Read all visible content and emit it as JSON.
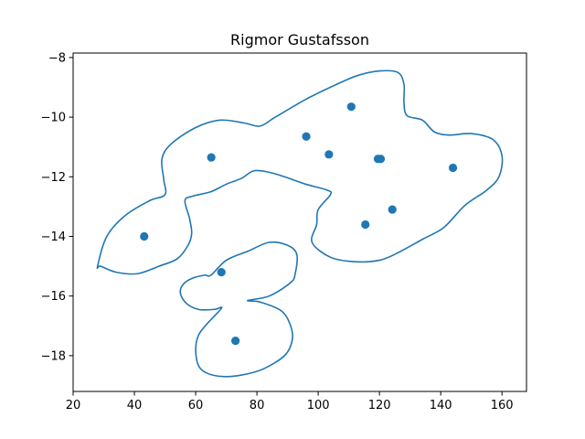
{
  "chart_data": {
    "type": "scatter",
    "title": "Rigmor Gustafsson",
    "xlabel": "",
    "ylabel": "",
    "xlim": [
      20,
      168
    ],
    "ylim": [
      -19.2,
      -7.85
    ],
    "xticks": [
      20,
      40,
      60,
      80,
      100,
      120,
      140,
      160
    ],
    "yticks": [
      -18,
      -16,
      -14,
      -12,
      -10,
      -8
    ],
    "xtick_labels": [
      "20",
      "40",
      "60",
      "80",
      "100",
      "120",
      "140",
      "160"
    ],
    "ytick_labels": [
      "−18",
      "−16",
      "−14",
      "−12",
      "−10",
      "−8"
    ],
    "grid": false,
    "legend": "none",
    "colors": {
      "series": "#1f77b4",
      "axis": "#000000",
      "background": "#ffffff"
    },
    "series": [
      {
        "points": [
          {
            "x": 43.2,
            "y": -14.0
          },
          {
            "x": 65.1,
            "y": -11.35
          },
          {
            "x": 68.4,
            "y": -15.2
          },
          {
            "x": 73.0,
            "y": -17.5
          },
          {
            "x": 96.1,
            "y": -10.65
          },
          {
            "x": 103.5,
            "y": -11.25
          },
          {
            "x": 110.8,
            "y": -9.65
          },
          {
            "x": 115.4,
            "y": -13.6
          },
          {
            "x": 119.5,
            "y": -11.4
          },
          {
            "x": 120.4,
            "y": -11.4
          },
          {
            "x": 124.2,
            "y": -13.1
          },
          {
            "x": 144.0,
            "y": -11.7
          }
        ]
      }
    ],
    "contours": [
      {
        "points": [
          [
            28,
            -15.0
          ],
          [
            31,
            -14.0
          ],
          [
            37,
            -13.3
          ],
          [
            45,
            -12.8
          ],
          [
            50,
            -12.6
          ],
          [
            49.6,
            -12.1
          ],
          [
            49,
            -11.4
          ],
          [
            52,
            -10.9
          ],
          [
            60,
            -10.35
          ],
          [
            68,
            -10.1
          ],
          [
            76,
            -10.2
          ],
          [
            81,
            -10.3
          ],
          [
            86,
            -10.0
          ],
          [
            96,
            -9.4
          ],
          [
            106,
            -8.9
          ],
          [
            113,
            -8.6
          ],
          [
            120,
            -8.45
          ],
          [
            126,
            -8.5
          ],
          [
            128,
            -8.9
          ],
          [
            128,
            -9.5
          ],
          [
            129,
            -9.95
          ],
          [
            134,
            -10.1
          ],
          [
            138,
            -10.5
          ],
          [
            143,
            -10.6
          ],
          [
            150,
            -10.55
          ],
          [
            157,
            -10.75
          ],
          [
            160,
            -11.3
          ],
          [
            159,
            -12.0
          ],
          [
            155,
            -12.45
          ],
          [
            148,
            -12.95
          ],
          [
            141,
            -13.7
          ],
          [
            134,
            -14.1
          ],
          [
            126,
            -14.55
          ],
          [
            120,
            -14.8
          ],
          [
            112,
            -14.85
          ],
          [
            104,
            -14.7
          ],
          [
            98,
            -14.2
          ],
          [
            99.5,
            -13.6
          ],
          [
            100,
            -13.1
          ],
          [
            104,
            -12.6
          ],
          [
            103,
            -12.45
          ],
          [
            96,
            -12.25
          ],
          [
            89,
            -12.0
          ],
          [
            84,
            -11.85
          ],
          [
            79,
            -11.8
          ],
          [
            75,
            -12.05
          ],
          [
            70,
            -12.25
          ],
          [
            65,
            -12.5
          ],
          [
            59,
            -12.65
          ],
          [
            56.5,
            -12.8
          ],
          [
            58,
            -13.4
          ],
          [
            58.7,
            -13.9
          ],
          [
            57.5,
            -14.3
          ],
          [
            54,
            -14.75
          ],
          [
            48,
            -15.0
          ],
          [
            41,
            -15.25
          ],
          [
            34,
            -15.2
          ],
          [
            29,
            -15.0
          ]
        ]
      },
      {
        "points": [
          [
            65,
            -15.3
          ],
          [
            70,
            -14.8
          ],
          [
            77,
            -14.5
          ],
          [
            84,
            -14.2
          ],
          [
            90,
            -14.3
          ],
          [
            93,
            -14.6
          ],
          [
            92.5,
            -15.25
          ],
          [
            91,
            -15.55
          ],
          [
            84,
            -16.0
          ],
          [
            77,
            -16.15
          ],
          [
            81,
            -16.2
          ],
          [
            88,
            -16.5
          ],
          [
            91,
            -17.0
          ],
          [
            91.5,
            -17.5
          ],
          [
            89,
            -18.0
          ],
          [
            82,
            -18.45
          ],
          [
            75,
            -18.65
          ],
          [
            69,
            -18.7
          ],
          [
            64,
            -18.6
          ],
          [
            61,
            -18.35
          ],
          [
            60,
            -17.8
          ],
          [
            61,
            -17.3
          ],
          [
            64,
            -16.9
          ],
          [
            68.5,
            -16.4
          ],
          [
            66,
            -16.45
          ],
          [
            61,
            -16.45
          ],
          [
            57,
            -16.25
          ],
          [
            55,
            -15.9
          ],
          [
            56,
            -15.6
          ],
          [
            59,
            -15.4
          ],
          [
            63,
            -15.3
          ]
        ]
      }
    ]
  }
}
